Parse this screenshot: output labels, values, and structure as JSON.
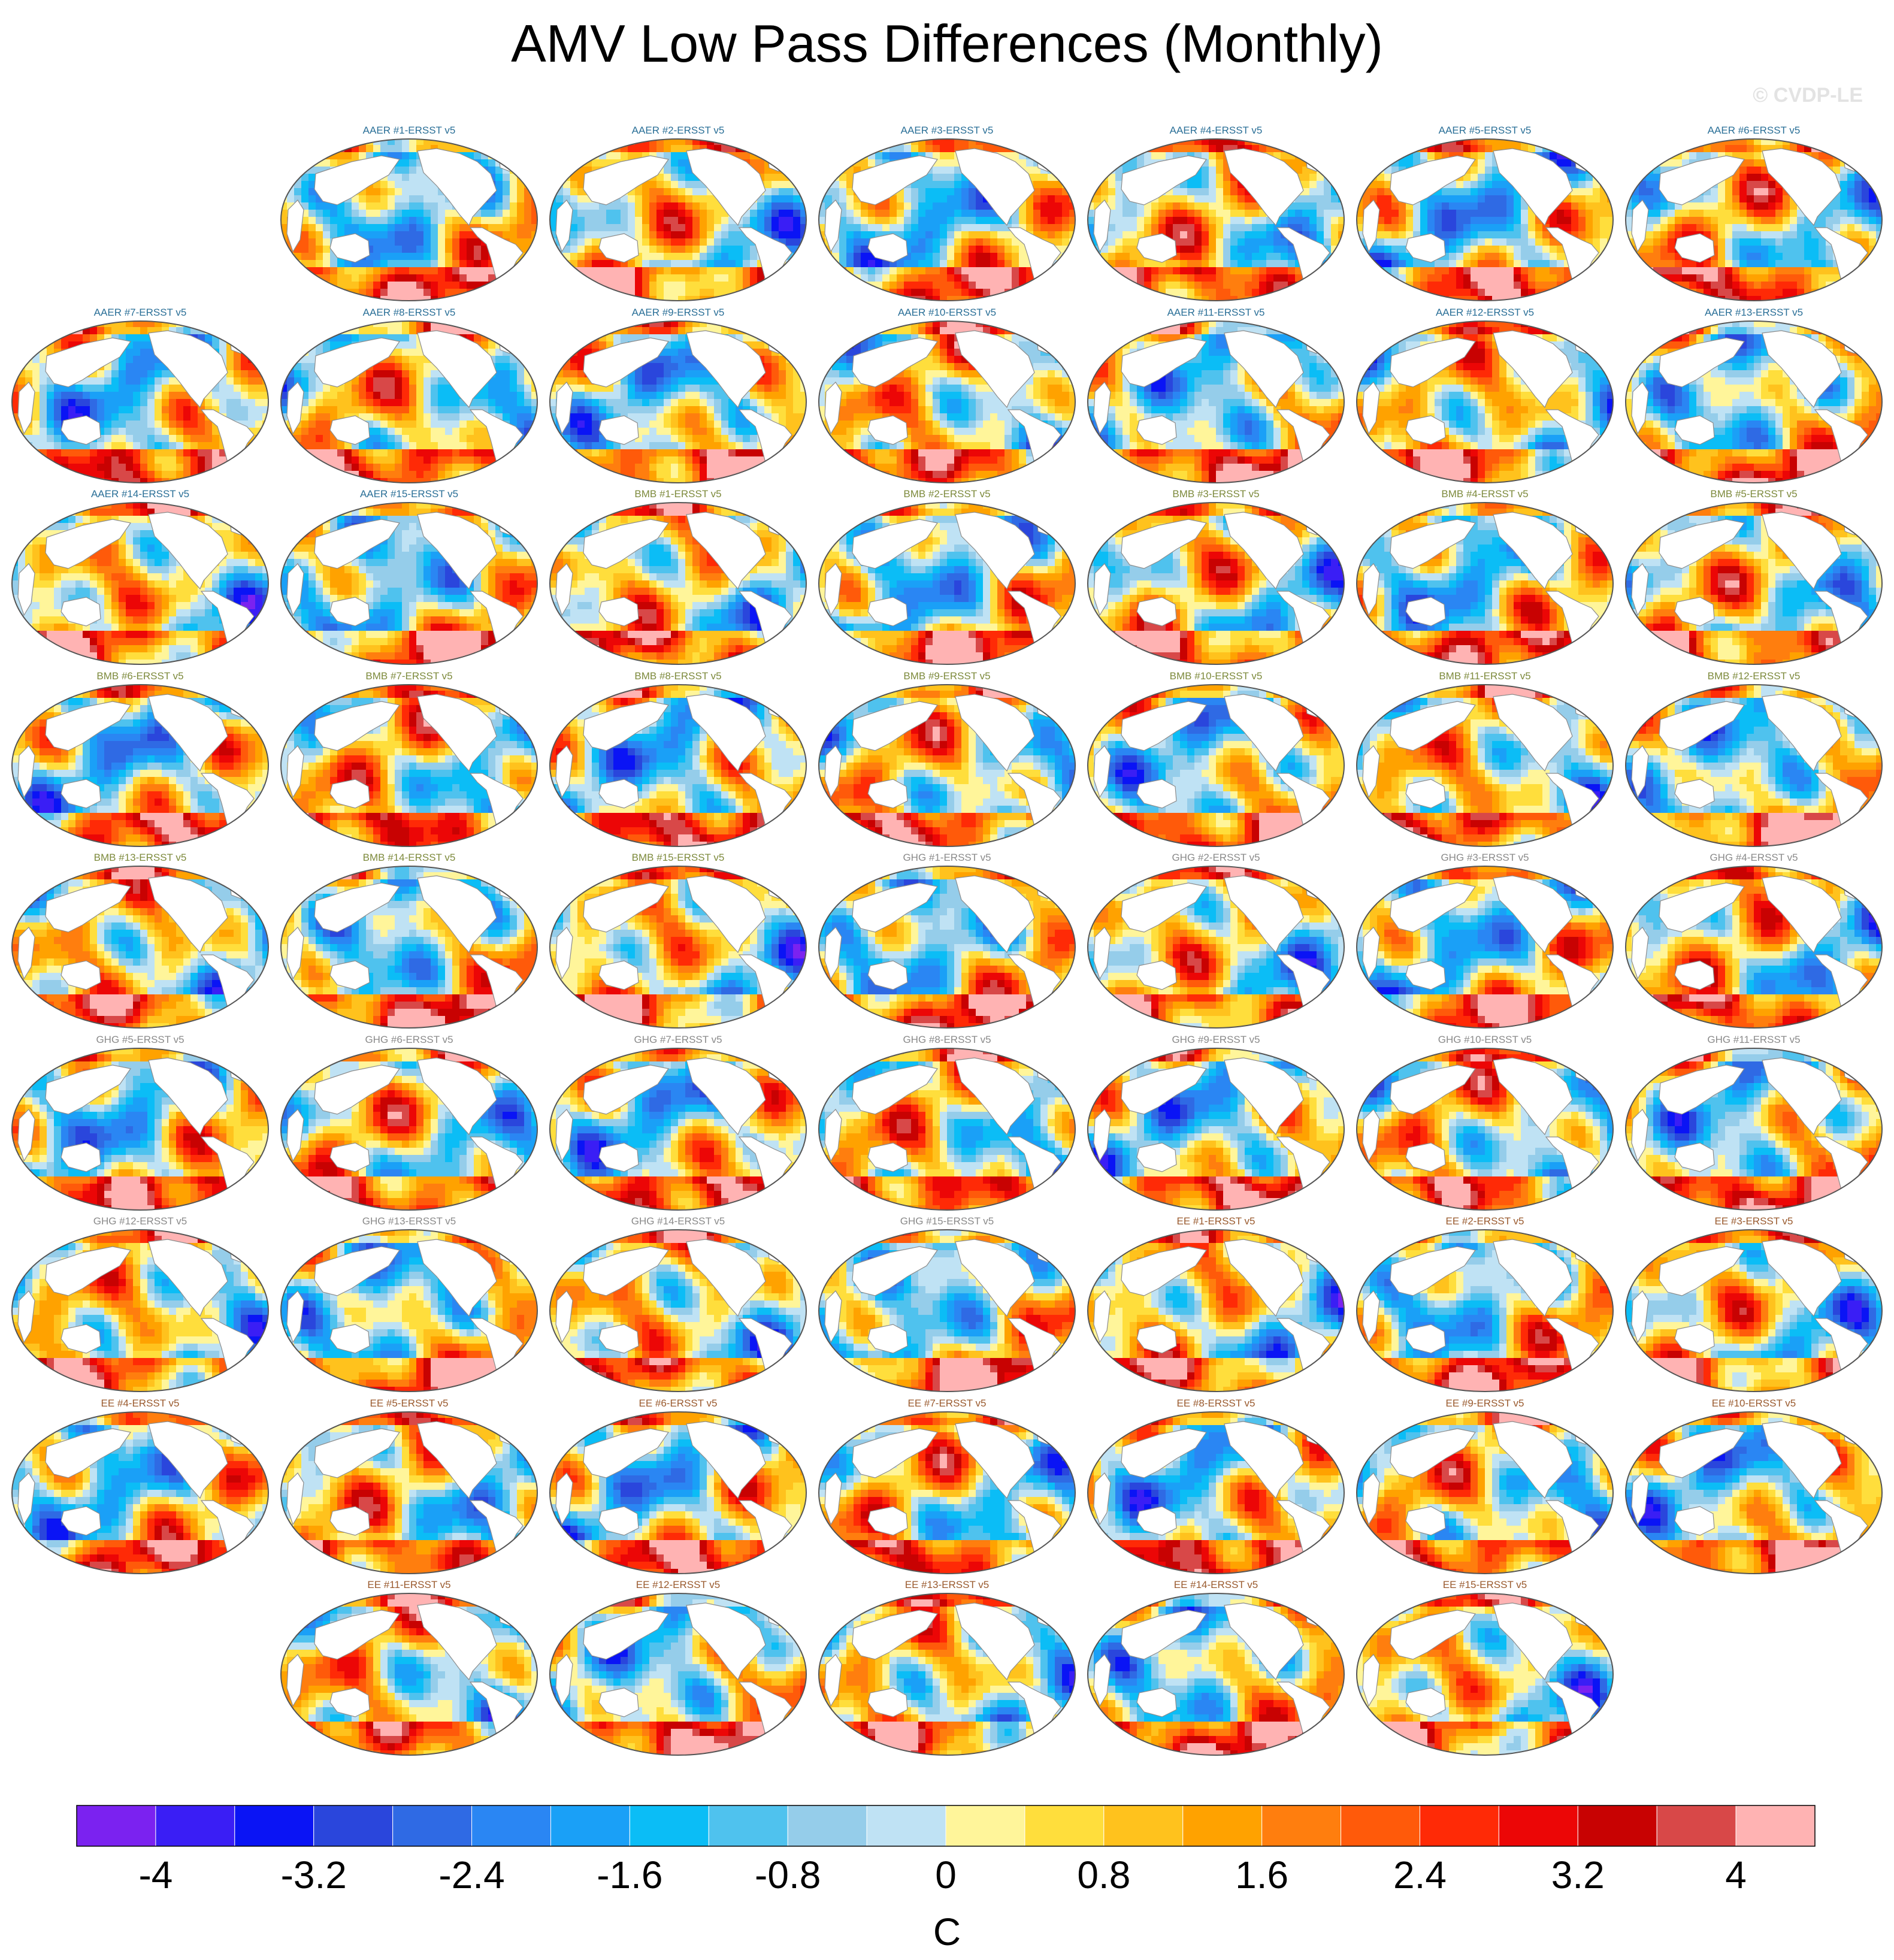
{
  "title": "AMV Low Pass Differences (Monthly)",
  "watermark": "© CVDP-LE",
  "chart_data": {
    "type": "heatmap",
    "title": "AMV Low Pass Differences (Monthly)",
    "projection": "global map (Robinson-like ellipse)",
    "variable": "SST low pass AMV difference (model minus ERSST v5)",
    "grid_layout": {
      "rows": 9,
      "cols": 7
    },
    "groups": [
      {
        "name": "AAER",
        "color": "#2a6f97"
      },
      {
        "name": "BMB",
        "color": "#7d8a3c"
      },
      {
        "name": "GHG",
        "color": "#8a8a8a"
      },
      {
        "name": "EE",
        "color": "#9a5a2e"
      }
    ],
    "panels": [
      {
        "label": "AAER #1-ERSST v5",
        "row": 0,
        "col": 1,
        "group": "AAER"
      },
      {
        "label": "AAER #2-ERSST v5",
        "row": 0,
        "col": 2,
        "group": "AAER"
      },
      {
        "label": "AAER #3-ERSST v5",
        "row": 0,
        "col": 3,
        "group": "AAER"
      },
      {
        "label": "AAER #4-ERSST v5",
        "row": 0,
        "col": 4,
        "group": "AAER"
      },
      {
        "label": "AAER #5-ERSST v5",
        "row": 0,
        "col": 5,
        "group": "AAER"
      },
      {
        "label": "AAER #6-ERSST v5",
        "row": 0,
        "col": 6,
        "group": "AAER"
      },
      {
        "label": "AAER #7-ERSST v5",
        "row": 1,
        "col": 0,
        "group": "AAER"
      },
      {
        "label": "AAER #8-ERSST v5",
        "row": 1,
        "col": 1,
        "group": "AAER"
      },
      {
        "label": "AAER #9-ERSST v5",
        "row": 1,
        "col": 2,
        "group": "AAER"
      },
      {
        "label": "AAER #10-ERSST v5",
        "row": 1,
        "col": 3,
        "group": "AAER"
      },
      {
        "label": "AAER #11-ERSST v5",
        "row": 1,
        "col": 4,
        "group": "AAER"
      },
      {
        "label": "AAER #12-ERSST v5",
        "row": 1,
        "col": 5,
        "group": "AAER"
      },
      {
        "label": "AAER #13-ERSST v5",
        "row": 1,
        "col": 6,
        "group": "AAER"
      },
      {
        "label": "AAER #14-ERSST v5",
        "row": 2,
        "col": 0,
        "group": "AAER"
      },
      {
        "label": "AAER #15-ERSST v5",
        "row": 2,
        "col": 1,
        "group": "AAER"
      },
      {
        "label": "BMB #1-ERSST v5",
        "row": 2,
        "col": 2,
        "group": "BMB"
      },
      {
        "label": "BMB #2-ERSST v5",
        "row": 2,
        "col": 3,
        "group": "BMB"
      },
      {
        "label": "BMB #3-ERSST v5",
        "row": 2,
        "col": 4,
        "group": "BMB"
      },
      {
        "label": "BMB #4-ERSST v5",
        "row": 2,
        "col": 5,
        "group": "BMB"
      },
      {
        "label": "BMB #5-ERSST v5",
        "row": 2,
        "col": 6,
        "group": "BMB"
      },
      {
        "label": "BMB #6-ERSST v5",
        "row": 3,
        "col": 0,
        "group": "BMB"
      },
      {
        "label": "BMB #7-ERSST v5",
        "row": 3,
        "col": 1,
        "group": "BMB"
      },
      {
        "label": "BMB #8-ERSST v5",
        "row": 3,
        "col": 2,
        "group": "BMB"
      },
      {
        "label": "BMB #9-ERSST v5",
        "row": 3,
        "col": 3,
        "group": "BMB"
      },
      {
        "label": "BMB #10-ERSST v5",
        "row": 3,
        "col": 4,
        "group": "BMB"
      },
      {
        "label": "BMB #11-ERSST v5",
        "row": 3,
        "col": 5,
        "group": "BMB"
      },
      {
        "label": "BMB #12-ERSST v5",
        "row": 3,
        "col": 6,
        "group": "BMB"
      },
      {
        "label": "BMB #13-ERSST v5",
        "row": 4,
        "col": 0,
        "group": "BMB"
      },
      {
        "label": "BMB #14-ERSST v5",
        "row": 4,
        "col": 1,
        "group": "BMB"
      },
      {
        "label": "BMB #15-ERSST v5",
        "row": 4,
        "col": 2,
        "group": "BMB"
      },
      {
        "label": "GHG #1-ERSST v5",
        "row": 4,
        "col": 3,
        "group": "GHG"
      },
      {
        "label": "GHG #2-ERSST v5",
        "row": 4,
        "col": 4,
        "group": "GHG"
      },
      {
        "label": "GHG #3-ERSST v5",
        "row": 4,
        "col": 5,
        "group": "GHG"
      },
      {
        "label": "GHG #4-ERSST v5",
        "row": 4,
        "col": 6,
        "group": "GHG"
      },
      {
        "label": "GHG #5-ERSST v5",
        "row": 5,
        "col": 0,
        "group": "GHG"
      },
      {
        "label": "GHG #6-ERSST v5",
        "row": 5,
        "col": 1,
        "group": "GHG"
      },
      {
        "label": "GHG #7-ERSST v5",
        "row": 5,
        "col": 2,
        "group": "GHG"
      },
      {
        "label": "GHG #8-ERSST v5",
        "row": 5,
        "col": 3,
        "group": "GHG"
      },
      {
        "label": "GHG #9-ERSST v5",
        "row": 5,
        "col": 4,
        "group": "GHG"
      },
      {
        "label": "GHG #10-ERSST v5",
        "row": 5,
        "col": 5,
        "group": "GHG"
      },
      {
        "label": "GHG #11-ERSST v5",
        "row": 5,
        "col": 6,
        "group": "GHG"
      },
      {
        "label": "GHG #12-ERSST v5",
        "row": 6,
        "col": 0,
        "group": "GHG"
      },
      {
        "label": "GHG #13-ERSST v5",
        "row": 6,
        "col": 1,
        "group": "GHG"
      },
      {
        "label": "GHG #14-ERSST v5",
        "row": 6,
        "col": 2,
        "group": "GHG"
      },
      {
        "label": "GHG #15-ERSST v5",
        "row": 6,
        "col": 3,
        "group": "GHG"
      },
      {
        "label": "EE #1-ERSST v5",
        "row": 6,
        "col": 4,
        "group": "EE"
      },
      {
        "label": "EE #2-ERSST v5",
        "row": 6,
        "col": 5,
        "group": "EE"
      },
      {
        "label": "EE #3-ERSST v5",
        "row": 6,
        "col": 6,
        "group": "EE"
      },
      {
        "label": "EE #4-ERSST v5",
        "row": 7,
        "col": 0,
        "group": "EE"
      },
      {
        "label": "EE #5-ERSST v5",
        "row": 7,
        "col": 1,
        "group": "EE"
      },
      {
        "label": "EE #6-ERSST v5",
        "row": 7,
        "col": 2,
        "group": "EE"
      },
      {
        "label": "EE #7-ERSST v5",
        "row": 7,
        "col": 3,
        "group": "EE"
      },
      {
        "label": "EE #8-ERSST v5",
        "row": 7,
        "col": 4,
        "group": "EE"
      },
      {
        "label": "EE #9-ERSST v5",
        "row": 7,
        "col": 5,
        "group": "EE"
      },
      {
        "label": "EE #10-ERSST v5",
        "row": 7,
        "col": 6,
        "group": "EE"
      },
      {
        "label": "EE #11-ERSST v5",
        "row": 8,
        "col": 1,
        "group": "EE"
      },
      {
        "label": "EE #12-ERSST v5",
        "row": 8,
        "col": 2,
        "group": "EE"
      },
      {
        "label": "EE #13-ERSST v5",
        "row": 8,
        "col": 3,
        "group": "EE"
      },
      {
        "label": "EE #14-ERSST v5",
        "row": 8,
        "col": 4,
        "group": "EE"
      },
      {
        "label": "EE #15-ERSST v5",
        "row": 8,
        "col": 5,
        "group": "EE"
      }
    ],
    "colorbar": {
      "unit": "C",
      "min": -4.4,
      "max": 4.4,
      "step": 0.4,
      "tick_values": [
        -4,
        -3.2,
        -2.4,
        -1.6,
        -0.8,
        0,
        0.8,
        1.6,
        2.4,
        3.2,
        4
      ],
      "tick_labels": [
        "-4",
        "-3.2",
        "-2.4",
        "-1.6",
        "-0.8",
        "0",
        "0.8",
        "1.6",
        "2.4",
        "3.2",
        "4"
      ],
      "colors": [
        "#7b22f0",
        "#3a1ef5",
        "#0a14f5",
        "#2a46dc",
        "#2f6ae4",
        "#2a86f3",
        "#1aa0f7",
        "#0bbdf6",
        "#4fc2ee",
        "#95cdea",
        "#bfe2f4",
        "#fff59a",
        "#ffde3c",
        "#ffc21d",
        "#ffa200",
        "#ff7e0e",
        "#ff5a0a",
        "#ff2a06",
        "#ec0606",
        "#c80202",
        "#d84848",
        "#ffb3b3"
      ]
    }
  }
}
